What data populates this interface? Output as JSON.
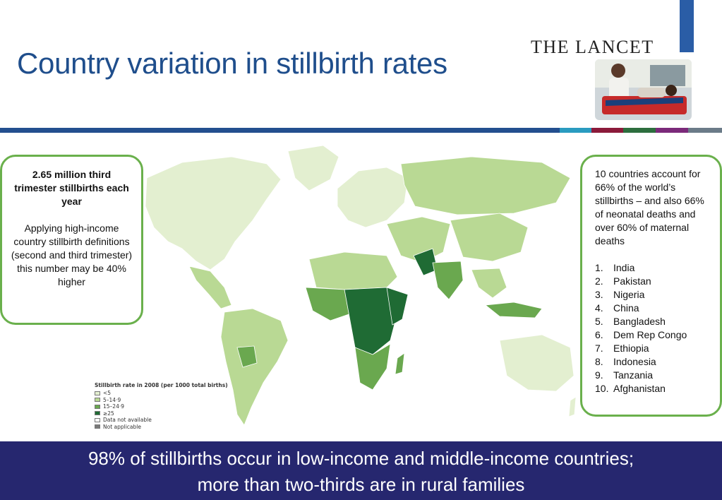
{
  "title": "Country variation in stillbirth rates",
  "logo_text": "THE LANCET",
  "left_box": {
    "heading": "2.65 million third trimester stillbirths each year",
    "body": "Applying high-income country stillbirth definitions (second and third trimester) this number may be 40% higher"
  },
  "right_box": {
    "intro": "10 countries account for 66% of the world’s stillbirths – and also 66% of neonatal deaths and over 60% of maternal deaths",
    "countries": [
      {
        "num": "1.",
        "name": "India"
      },
      {
        "num": "2.",
        "name": "Pakistan"
      },
      {
        "num": "3.",
        "name": "Nigeria"
      },
      {
        "num": "4.",
        "name": "China"
      },
      {
        "num": "5.",
        "name": "Bangladesh"
      },
      {
        "num": "6.",
        "name": "Dem Rep Congo"
      },
      {
        "num": "7.",
        "name": "Ethiopia"
      },
      {
        "num": "8.",
        "name": "Indonesia"
      },
      {
        "num": "9.",
        "name": "Tanzania"
      },
      {
        "num": "10.",
        "name": "Afghanistan"
      }
    ]
  },
  "legend": {
    "title": "Stillbirth rate in 2008 (per 1000 total births)",
    "items": [
      {
        "label": "<5",
        "color": "#e3efd0"
      },
      {
        "label": "5–14·9",
        "color": "#b9d994"
      },
      {
        "label": "15–24·9",
        "color": "#6aa84f"
      },
      {
        "label": "≥25",
        "color": "#1f6b34"
      },
      {
        "label": "Data not available",
        "color": "#ffffff"
      },
      {
        "label": "Not applicable",
        "color": "#7a7a7a"
      }
    ]
  },
  "footer": {
    "line1": "98% of stillbirths occur in low-income and middle-income  countries;",
    "line2": "more than two-thirds are in rural families"
  },
  "colors": {
    "title": "#1f4e8c",
    "stripe": "#234f8f",
    "footer_bg": "#26276f",
    "callout_border": "#6ab04c",
    "stripe_segments": [
      "#2a9bc0",
      "#8b1a3a",
      "#2d6e3e",
      "#7b2a7a",
      "#6b7b88"
    ]
  }
}
